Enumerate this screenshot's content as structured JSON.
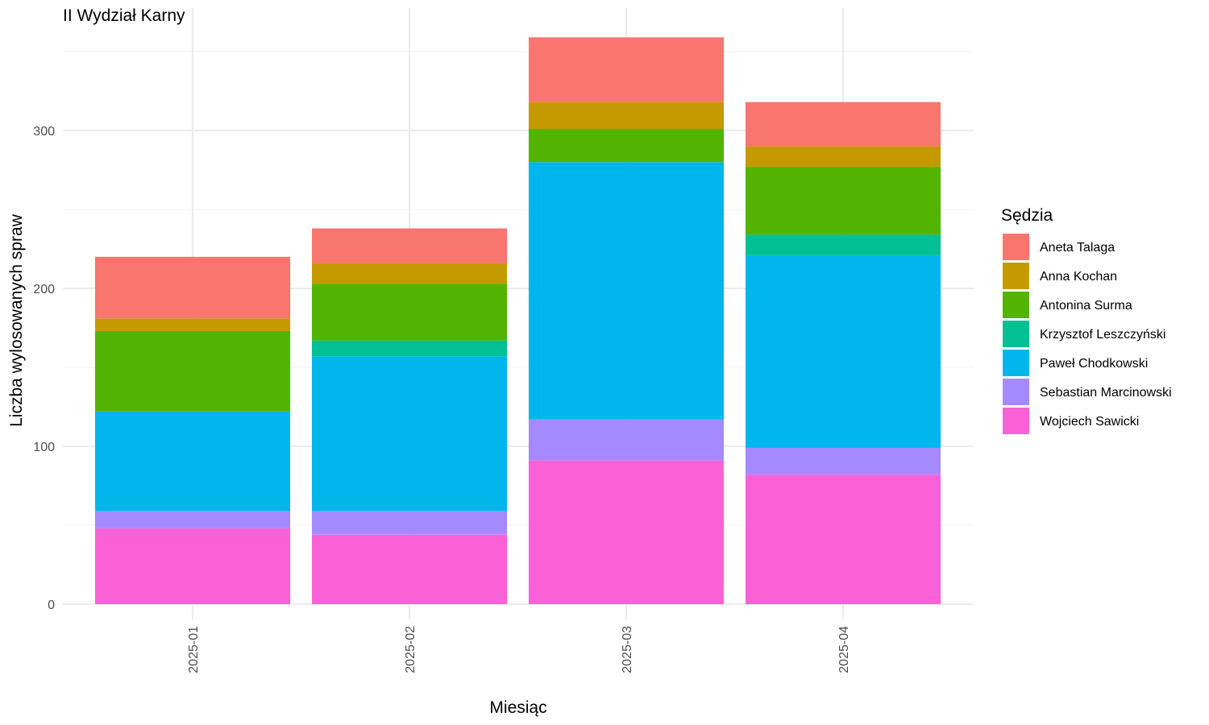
{
  "chart_data": {
    "type": "bar",
    "stacked": true,
    "title": "II Wydział Karny",
    "xlabel": "Miesiąc",
    "ylabel": "Liczba wylosowanych spraw",
    "categories": [
      "2025-01",
      "2025-02",
      "2025-03",
      "2025-04"
    ],
    "ylim": [
      0,
      365
    ],
    "yticks": [
      0,
      100,
      200,
      300
    ],
    "grid": true,
    "legend": {
      "title": "Sędzia",
      "position": "right"
    },
    "series": [
      {
        "name": "Aneta Talaga",
        "color": "#F8766D",
        "values": [
          39,
          22,
          41,
          28
        ]
      },
      {
        "name": "Anna Kochan",
        "color": "#C49A00",
        "values": [
          8,
          13,
          17,
          13
        ]
      },
      {
        "name": "Antonina Surma",
        "color": "#53B400",
        "values": [
          51,
          36,
          21,
          43
        ]
      },
      {
        "name": "Krzysztof Leszczyński",
        "color": "#00C094",
        "values": [
          0,
          10,
          0,
          13
        ]
      },
      {
        "name": "Paweł Chodkowski",
        "color": "#00B6EB",
        "values": [
          63,
          98,
          163,
          122
        ]
      },
      {
        "name": "Sebastian Marcinowski",
        "color": "#A58AFF",
        "values": [
          11,
          15,
          26,
          17
        ]
      },
      {
        "name": "Wojciech Sawicki",
        "color": "#FB61D7",
        "values": [
          48,
          44,
          91,
          82
        ]
      }
    ]
  }
}
